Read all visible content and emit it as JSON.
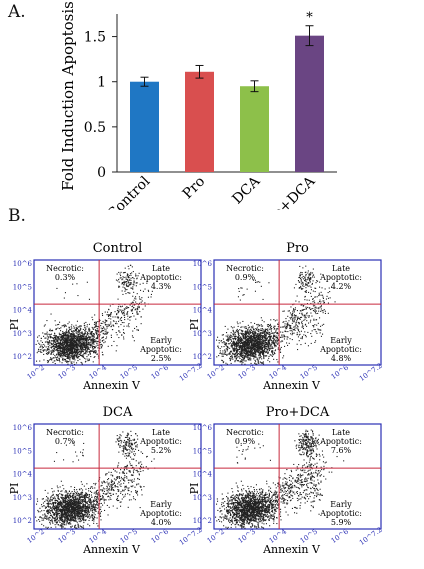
{
  "panel_a_label": "A.",
  "panel_b_label": "B.",
  "chart_data": [
    {
      "type": "bar",
      "ylabel": "Fold Induction Apoptosis",
      "ylim": [
        0,
        1.75
      ],
      "yticks": [
        "0",
        "0.5",
        "1",
        "1.5"
      ],
      "ytick_values": [
        0,
        0.5,
        1,
        1.5
      ],
      "categories": [
        "Control",
        "Pro",
        "DCA",
        "Pro+DCA"
      ],
      "values": [
        1.0,
        1.11,
        0.95,
        1.51
      ],
      "errors": [
        0.05,
        0.07,
        0.06,
        0.11
      ],
      "colors": [
        "#1f77c4",
        "#d94f4f",
        "#8dc04a",
        "#6a4583"
      ],
      "significance": [
        "",
        "",
        "",
        "*"
      ],
      "grid": false
    },
    {
      "type": "scatter",
      "plots": [
        {
          "title": "Control",
          "xlabel": "Annexin V",
          "ylabel": "PI",
          "quadrants": {
            "necrotic": [
              "Necrotic:",
              "0.3%"
            ],
            "late": [
              "Late",
              "Apoptotic:",
              "4.3%"
            ],
            "early": [
              "Early",
              "Apoptotic:",
              "2.5%"
            ]
          },
          "late_pct": 4.3,
          "early_pct": 2.5,
          "necrotic_pct": 0.3
        },
        {
          "title": "Pro",
          "xlabel": "Annexin V",
          "ylabel": "PI",
          "quadrants": {
            "necrotic": [
              "Necrotic:",
              "0.9%"
            ],
            "late": [
              "Late",
              "Apoptotic:",
              "4.2%"
            ],
            "early": [
              "Early",
              "Apoptotic:",
              "4.8%"
            ]
          },
          "late_pct": 4.2,
          "early_pct": 4.8,
          "necrotic_pct": 0.9
        },
        {
          "title": "DCA",
          "xlabel": "Annexin V",
          "ylabel": "PI",
          "quadrants": {
            "necrotic": [
              "Necrotic:",
              "0.7%"
            ],
            "late": [
              "Late",
              "Apoptotic:",
              "5.2%"
            ],
            "early": [
              "Early",
              "Apoptotic:",
              "4.0%"
            ]
          },
          "late_pct": 5.2,
          "early_pct": 4.0,
          "necrotic_pct": 0.7
        },
        {
          "title": "Pro+DCA",
          "xlabel": "Annexin V",
          "ylabel": "PI",
          "quadrants": {
            "necrotic": [
              "Necrotic:",
              "0.9%"
            ],
            "late": [
              "Late",
              "Apoptotic:",
              "7.6%"
            ],
            "early": [
              "Early",
              "Apoptotic:",
              "5.9%"
            ]
          },
          "late_pct": 7.6,
          "early_pct": 5.9,
          "necrotic_pct": 0.9
        }
      ],
      "axis_ticks": [
        "10^2",
        "10^3",
        "10^4",
        "10^5",
        "10^6",
        "10^7.2"
      ],
      "frame_color": "#2a2fb5",
      "gate_color": "#c8283c",
      "dot_color": "#222222"
    }
  ]
}
